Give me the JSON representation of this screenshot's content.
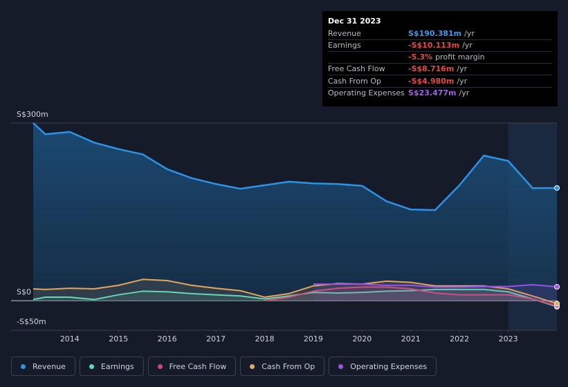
{
  "chart_data": {
    "type": "line",
    "x": [
      2013.25,
      2013.5,
      2014,
      2014.5,
      2015,
      2015.5,
      2016,
      2016.5,
      2017,
      2017.5,
      2018,
      2018.5,
      2019,
      2019.5,
      2020,
      2020.5,
      2021,
      2021.5,
      2022,
      2022.5,
      2023,
      2023.5,
      2024
    ],
    "xlim": [
      2013.25,
      2024
    ],
    "xticks": [
      2014,
      2015,
      2016,
      2017,
      2018,
      2019,
      2020,
      2021,
      2022,
      2023
    ],
    "ylim": [
      -50,
      300
    ],
    "yticks": [
      {
        "value": 300,
        "label": "S$300m"
      },
      {
        "value": 0,
        "label": "S$0"
      },
      {
        "value": -50,
        "label": "-S$50m"
      }
    ],
    "grid": true,
    "series": [
      {
        "name": "Revenue",
        "color": "#2e93e6",
        "values": [
          300,
          281,
          285,
          267,
          256,
          247,
          222,
          207,
          197,
          189,
          195,
          201,
          198,
          197,
          194,
          168,
          154,
          153,
          195,
          245,
          236,
          190,
          190.381
        ]
      },
      {
        "name": "Earnings",
        "color": "#58dcc0",
        "values": [
          2,
          6,
          6,
          2,
          10,
          16,
          15,
          12,
          10,
          8,
          3,
          8,
          14,
          13,
          14,
          16,
          17,
          19,
          19,
          19,
          15,
          3,
          -10.113
        ]
      },
      {
        "name": "Free Cash Flow",
        "color": "#d2457c",
        "values": [
          null,
          null,
          null,
          null,
          null,
          null,
          null,
          null,
          null,
          null,
          0,
          6,
          16,
          21,
          23,
          23,
          20,
          13,
          10,
          10,
          10,
          3,
          -8.716
        ]
      },
      {
        "name": "Cash From Op",
        "color": "#e6a75c",
        "values": [
          20,
          19,
          21,
          20,
          26,
          36,
          34,
          26,
          21,
          17,
          6,
          12,
          25,
          29,
          28,
          33,
          31,
          25,
          25,
          25,
          20,
          8,
          -4.98
        ]
      },
      {
        "name": "Operating Expenses",
        "color": "#9c52e8",
        "values": [
          null,
          null,
          null,
          null,
          null,
          null,
          null,
          null,
          null,
          null,
          null,
          null,
          28,
          28,
          28,
          26,
          26,
          23,
          23,
          24,
          24,
          27,
          23.477
        ]
      }
    ],
    "tooltip": {
      "title": "Dec 31 2023",
      "rows": [
        {
          "label": "Revenue",
          "value": "S$190.381m",
          "unit": "/yr",
          "color": "#3b9bf0"
        },
        {
          "label": "Earnings",
          "value": "-S$10.113m",
          "unit": "/yr",
          "color": "#e8484b"
        },
        {
          "value": "-5.3%",
          "unit": "profit margin",
          "color": "#e8484b"
        },
        {
          "label": "Free Cash Flow",
          "value": "-S$8.716m",
          "unit": "/yr",
          "color": "#e8484b"
        },
        {
          "label": "Cash From Op",
          "value": "-S$4.980m",
          "unit": "/yr",
          "color": "#e8484b"
        },
        {
          "label": "Operating Expenses",
          "value": "S$23.477m",
          "unit": "/yr",
          "color": "#a35ff0"
        }
      ]
    }
  }
}
